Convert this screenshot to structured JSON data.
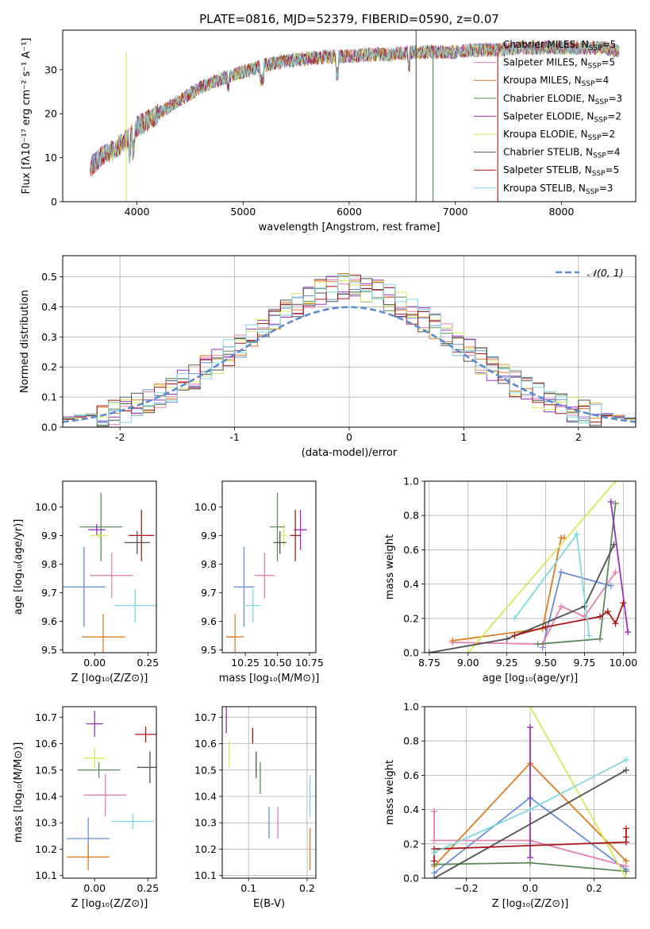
{
  "figure": {
    "title": "PLATE=0816, MJD=52379, FIBERID=0590, z=0.07"
  },
  "colors": {
    "series": [
      "#6a8fd8",
      "#e87fb2",
      "#e07b22",
      "#5c8a5c",
      "#9b30c0",
      "#d8e85a",
      "#505050",
      "#a81818",
      "#80d8e0"
    ]
  },
  "chart_data": [
    {
      "id": "spectrum",
      "type": "line",
      "title": "PLATE=0816, MJD=52379, FIBERID=0590, z=0.07",
      "xlabel": "wavelength [Angstrom, rest frame]",
      "ylabel": "Flux [fλ10⁻¹⁷ erg cm⁻² s⁻¹ A⁻¹]",
      "xlim": [
        3300,
        8700
      ],
      "ylim": [
        0,
        39
      ],
      "xticks": [
        4000,
        5000,
        6000,
        7000,
        8000
      ],
      "yticks": [
        0,
        10,
        20,
        30
      ],
      "grid": false,
      "legend_position": "upper right",
      "legend": [
        "Chabrier MILES, N_SSP=5",
        "Salpeter MILES, N_SSP=5",
        "Kroupa MILES, N_SSP=4",
        "Chabrier ELODIE, N_SSP=3",
        "Salpeter ELODIE, N_SSP=2",
        "Kroupa ELODIE, N_SSP=2",
        "Chabrier STELIB, N_SSP=4",
        "Salpeter STELIB, N_SSP=5",
        "Kroupa STELIB, N_SSP=3"
      ],
      "continuum": [
        [
          3560,
          8
        ],
        [
          3700,
          11
        ],
        [
          3800,
          12
        ],
        [
          3900,
          14
        ],
        [
          4000,
          17
        ],
        [
          4200,
          20
        ],
        [
          4400,
          23
        ],
        [
          4600,
          26
        ],
        [
          4800,
          28
        ],
        [
          5000,
          29.5
        ],
        [
          5200,
          31
        ],
        [
          5400,
          32
        ],
        [
          5600,
          32.5
        ],
        [
          5800,
          33
        ],
        [
          6000,
          33
        ],
        [
          6200,
          33.5
        ],
        [
          6400,
          33.5
        ],
        [
          6600,
          34
        ],
        [
          6800,
          34
        ],
        [
          7000,
          34
        ],
        [
          7200,
          34.5
        ],
        [
          7400,
          34.5
        ],
        [
          7600,
          35
        ],
        [
          7800,
          35
        ],
        [
          8000,
          35
        ],
        [
          8200,
          35
        ],
        [
          8400,
          35
        ],
        [
          8550,
          34
        ]
      ],
      "spikes": [
        {
          "x": 3900,
          "y": 0
        },
        {
          "x": 6630,
          "y": 39
        },
        {
          "x": 6630,
          "y": 0
        },
        {
          "x": 6790,
          "y": 0
        },
        {
          "x": 7400,
          "y": 0
        }
      ]
    },
    {
      "id": "residuals",
      "type": "histogram",
      "xlabel": "(data-model)/error",
      "ylabel": "Normed distribution",
      "xlim": [
        -2.5,
        2.5
      ],
      "ylim": [
        0,
        0.57
      ],
      "xticks": [
        -2,
        -1,
        0,
        1,
        2
      ],
      "yticks": [
        0.0,
        0.1,
        0.2,
        0.3,
        0.4,
        0.5
      ],
      "grid": true,
      "bin_width": 0.1,
      "legend_position": "upper right",
      "reference_curve": {
        "name": "𝒩(0, 1)",
        "mean": 0,
        "sigma": 1,
        "style": "dashed"
      }
    },
    {
      "id": "age-vs-Z",
      "type": "scatter",
      "error_bars": true,
      "xlabel": "Z [log₁₀(Z/Z⊙)]",
      "ylabel": "age  [log₁₀(age/yr)]",
      "xlim": [
        -0.15,
        0.29
      ],
      "ylim": [
        9.49,
        10.09
      ],
      "xticks": [
        "0.00",
        "0.25"
      ],
      "yticks": [
        "9.5",
        "9.6",
        "9.7",
        "9.8",
        "9.9",
        "10.0"
      ],
      "grid": false,
      "points": [
        {
          "x": -0.05,
          "y": 9.72,
          "xerr": 0.1,
          "yerr": 0.14
        },
        {
          "x": 0.08,
          "y": 9.76,
          "xerr": 0.1,
          "yerr": 0.08
        },
        {
          "x": 0.04,
          "y": 9.545,
          "xerr": 0.1,
          "yerr": 0.08
        },
        {
          "x": 0.03,
          "y": 9.93,
          "xerr": 0.1,
          "yerr": 0.12
        },
        {
          "x": 0.01,
          "y": 9.92,
          "xerr": 0.04,
          "yerr": 0.02
        },
        {
          "x": 0.02,
          "y": 9.9,
          "xerr": 0.04,
          "yerr": 0.01
        },
        {
          "x": 0.2,
          "y": 9.875,
          "xerr": 0.06,
          "yerr": 0.04
        },
        {
          "x": 0.22,
          "y": 9.9,
          "xerr": 0.06,
          "yerr": 0.09
        },
        {
          "x": 0.19,
          "y": 9.655,
          "xerr": 0.1,
          "yerr": 0.06
        }
      ]
    },
    {
      "id": "age-vs-mass",
      "type": "scatter",
      "error_bars": true,
      "xlabel": "mass [log₁₀(M/M⊙)]",
      "ylabel": "",
      "xlim": [
        10.07,
        10.8
      ],
      "ylim": [
        9.49,
        10.09
      ],
      "xticks": [
        "10.25",
        "10.50",
        "10.75"
      ],
      "yticks": [
        "9.5",
        "9.6",
        "9.7",
        "9.8",
        "9.9",
        "10.0"
      ],
      "grid": false,
      "points": [
        {
          "x": 10.24,
          "y": 9.72,
          "xerr": 0.08,
          "yerr": 0.14
        },
        {
          "x": 10.4,
          "y": 9.76,
          "xerr": 0.08,
          "yerr": 0.08
        },
        {
          "x": 10.17,
          "y": 9.545,
          "xerr": 0.07,
          "yerr": 0.08
        },
        {
          "x": 10.5,
          "y": 9.93,
          "xerr": 0.06,
          "yerr": 0.12
        },
        {
          "x": 10.68,
          "y": 9.92,
          "xerr": 0.05,
          "yerr": 0.07
        },
        {
          "x": 10.55,
          "y": 9.9,
          "xerr": 0.02,
          "yerr": 0.04
        },
        {
          "x": 10.52,
          "y": 9.875,
          "xerr": 0.05,
          "yerr": 0.04
        },
        {
          "x": 10.64,
          "y": 9.9,
          "xerr": 0.04,
          "yerr": 0.09
        },
        {
          "x": 10.31,
          "y": 9.655,
          "xerr": 0.06,
          "yerr": 0.06
        }
      ]
    },
    {
      "id": "weight-vs-age",
      "type": "line",
      "markers": true,
      "xlabel": "age  [log₁₀(age/yr)]",
      "ylabel": "mass weight",
      "xlim": [
        8.72,
        10.08
      ],
      "ylim": [
        0,
        1
      ],
      "xticks": [
        "8.75",
        "9.00",
        "9.25",
        "9.50",
        "9.75",
        "10.00"
      ],
      "yticks": [
        "0.0",
        "0.2",
        "0.4",
        "0.6",
        "0.8",
        "1.0"
      ],
      "grid": true,
      "series": [
        {
          "points": [
            [
              9.48,
              0.03
            ],
            [
              9.6,
              0.47
            ],
            [
              9.92,
              0.39
            ]
          ]
        },
        {
          "points": [
            [
              8.9,
              0.06
            ],
            [
              9.48,
              0.05
            ],
            [
              9.6,
              0.27
            ],
            [
              9.75,
              0.21
            ],
            [
              9.95,
              0.47
            ]
          ]
        },
        {
          "points": [
            [
              8.9,
              0.07
            ],
            [
              9.48,
              0.14
            ],
            [
              9.6,
              0.67
            ],
            [
              9.62,
              0.67
            ]
          ]
        },
        {
          "points": [
            [
              9.45,
              0.05
            ],
            [
              9.85,
              0.08
            ],
            [
              9.95,
              0.87
            ]
          ]
        },
        {
          "points": [
            [
              9.92,
              0.88
            ],
            [
              10.03,
              0.12
            ]
          ]
        },
        {
          "points": [
            [
              9.0,
              0.0
            ],
            [
              9.95,
              1.0
            ]
          ]
        },
        {
          "points": [
            [
              8.75,
              0.0
            ],
            [
              9.25,
              0.08
            ],
            [
              9.75,
              0.27
            ],
            [
              9.94,
              0.63
            ]
          ]
        },
        {
          "points": [
            [
              9.3,
              0.1
            ],
            [
              9.5,
              0.15
            ],
            [
              9.85,
              0.21
            ],
            [
              9.9,
              0.24
            ],
            [
              9.95,
              0.17
            ],
            [
              10.0,
              0.29
            ]
          ]
        },
        {
          "points": [
            [
              9.3,
              0.2
            ],
            [
              9.7,
              0.69
            ],
            [
              9.78,
              0.1
            ]
          ]
        }
      ]
    },
    {
      "id": "mass-vs-Z",
      "type": "scatter",
      "error_bars": true,
      "xlabel": "Z [log₁₀(Z/Z⊙)]",
      "ylabel": "mass [log₁₀(M/M⊙)]",
      "xlim": [
        -0.15,
        0.29
      ],
      "ylim": [
        10.09,
        10.74
      ],
      "xticks": [
        "0.00",
        "0.25"
      ],
      "yticks": [
        "10.1",
        "10.2",
        "10.3",
        "10.4",
        "10.5",
        "10.6",
        "10.7"
      ],
      "grid": false,
      "points": [
        {
          "x": -0.03,
          "y": 10.24,
          "xerr": 0.1,
          "yerr": 0.08
        },
        {
          "x": 0.05,
          "y": 10.405,
          "xerr": 0.1,
          "yerr": 0.08
        },
        {
          "x": -0.03,
          "y": 10.17,
          "xerr": 0.1,
          "yerr": 0.05
        },
        {
          "x": 0.02,
          "y": 10.5,
          "xerr": 0.1,
          "yerr": 0.03
        },
        {
          "x": 0.0,
          "y": 10.675,
          "xerr": 0.04,
          "yerr": 0.05
        },
        {
          "x": 0.0,
          "y": 10.545,
          "xerr": 0.05,
          "yerr": 0.04
        },
        {
          "x": 0.26,
          "y": 10.51,
          "xerr": 0.06,
          "yerr": 0.06
        },
        {
          "x": 0.24,
          "y": 10.635,
          "xerr": 0.05,
          "yerr": 0.03
        },
        {
          "x": 0.18,
          "y": 10.305,
          "xerr": 0.1,
          "yerr": 0.03
        }
      ]
    },
    {
      "id": "mass-vs-EBV",
      "type": "scatter",
      "error_bars": true,
      "xlabel": "E(B-V)",
      "ylabel": "",
      "xlim": [
        0.055,
        0.215
      ],
      "ylim": [
        10.09,
        10.74
      ],
      "xticks": [
        "0.1",
        "0.2"
      ],
      "yticks": [
        "10.1",
        "10.2",
        "10.3",
        "10.4",
        "10.5",
        "10.6",
        "10.7"
      ],
      "grid": true,
      "points": [
        {
          "x": 0.135,
          "y": 10.3,
          "xerr": 0,
          "yerr": 0.06
        },
        {
          "x": 0.15,
          "y": 10.3,
          "xerr": 0,
          "yerr": 0.06
        },
        {
          "x": 0.205,
          "y": 10.2,
          "xerr": 0,
          "yerr": 0.08
        },
        {
          "x": 0.12,
          "y": 10.47,
          "xerr": 0,
          "yerr": 0.06
        },
        {
          "x": 0.062,
          "y": 10.69,
          "xerr": 0,
          "yerr": 0.05
        },
        {
          "x": 0.067,
          "y": 10.56,
          "xerr": 0,
          "yerr": 0.05
        },
        {
          "x": 0.113,
          "y": 10.52,
          "xerr": 0,
          "yerr": 0.05
        },
        {
          "x": 0.107,
          "y": 10.63,
          "xerr": 0,
          "yerr": 0.03
        },
        {
          "x": 0.205,
          "y": 10.4,
          "xerr": 0,
          "yerr": 0.08
        }
      ]
    },
    {
      "id": "weight-vs-Z",
      "type": "line",
      "markers": true,
      "xlabel": "Z [log₁₀(Z/Z⊙)]",
      "ylabel": "mass weight",
      "xlim": [
        -0.33,
        0.33
      ],
      "ylim": [
        0,
        1
      ],
      "xticks": [
        "−0.2",
        "0.0",
        "0.2"
      ],
      "yticks": [
        "0.0",
        "0.2",
        "0.4",
        "0.6",
        "0.8",
        "1.0"
      ],
      "grid": true,
      "series": [
        {
          "points": [
            [
              -0.3,
              0.03
            ],
            [
              0.0,
              0.47
            ],
            [
              0.3,
              0.05
            ]
          ]
        },
        {
          "points": [
            [
              -0.3,
              0.39
            ],
            [
              -0.3,
              0.22
            ],
            [
              0.0,
              0.22
            ],
            [
              0.3,
              0.07
            ]
          ]
        },
        {
          "points": [
            [
              -0.3,
              0.07
            ],
            [
              0.0,
              0.67
            ],
            [
              0.3,
              0.1
            ]
          ]
        },
        {
          "points": [
            [
              -0.3,
              0.08
            ],
            [
              0.0,
              0.09
            ],
            [
              0.3,
              0.04
            ]
          ]
        },
        {
          "points": [
            [
              0.0,
              0.88
            ],
            [
              0.0,
              0.12
            ]
          ]
        },
        {
          "points": [
            [
              0.0,
              1.0
            ],
            [
              0.3,
              0.0
            ]
          ]
        },
        {
          "points": [
            [
              -0.3,
              0.0
            ],
            [
              0.3,
              0.63
            ]
          ]
        },
        {
          "points": [
            [
              -0.3,
              0.1
            ],
            [
              -0.3,
              0.17
            ],
            [
              0.3,
              0.21
            ],
            [
              0.3,
              0.24
            ],
            [
              0.3,
              0.29
            ]
          ]
        },
        {
          "points": [
            [
              -0.3,
              0.15
            ],
            [
              0.0,
              0.4
            ],
            [
              0.3,
              0.69
            ]
          ]
        }
      ]
    }
  ]
}
